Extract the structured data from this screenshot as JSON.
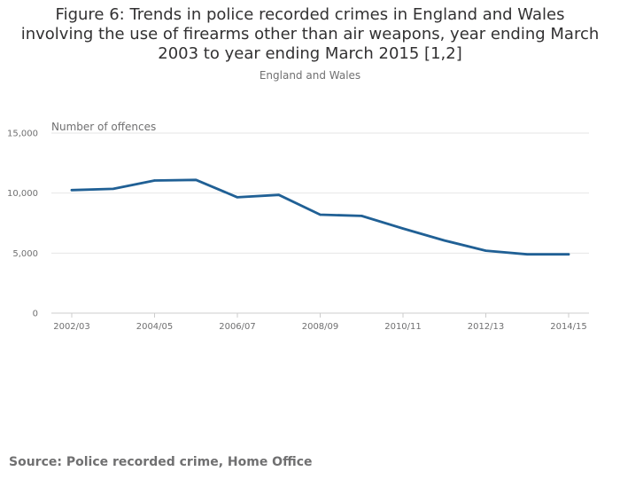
{
  "chart_data": {
    "type": "line",
    "title": "Figure 6: Trends in police recorded crimes in England and Wales involving the use of firearms other than air weapons, year ending March 2003 to year ending March 2015 [1,2]",
    "subtitle": "England and Wales",
    "ylabel": "Number of offences",
    "xlabel": "",
    "ylim": [
      0,
      15000
    ],
    "y_ticks": [
      0,
      5000,
      10000,
      15000
    ],
    "y_tick_labels": [
      "0",
      "5,000",
      "10,000",
      "15,000"
    ],
    "categories": [
      "2002/03",
      "2003/04",
      "2004/05",
      "2005/06",
      "2006/07",
      "2007/08",
      "2008/09",
      "2009/10",
      "2010/11",
      "2011/12",
      "2012/13",
      "2013/14",
      "2014/15"
    ],
    "x_tick_labels": [
      "2002/03",
      "2004/05",
      "2006/07",
      "2008/09",
      "2010/11",
      "2012/13",
      "2014/15"
    ],
    "series": [
      {
        "name": "Firearm offences (excluding air weapons)",
        "color": "#206095",
        "values": [
          10250,
          10350,
          11050,
          11100,
          9650,
          9850,
          8200,
          8100,
          7050,
          6050,
          5200,
          4900,
          4900
        ]
      }
    ],
    "grid": true,
    "legend": "none"
  },
  "source": "Source: Police recorded crime, Home Office",
  "colors": {
    "line": "#206095",
    "grid": "#e6e6e6",
    "axis": "#cccccc",
    "text": "#707071"
  }
}
